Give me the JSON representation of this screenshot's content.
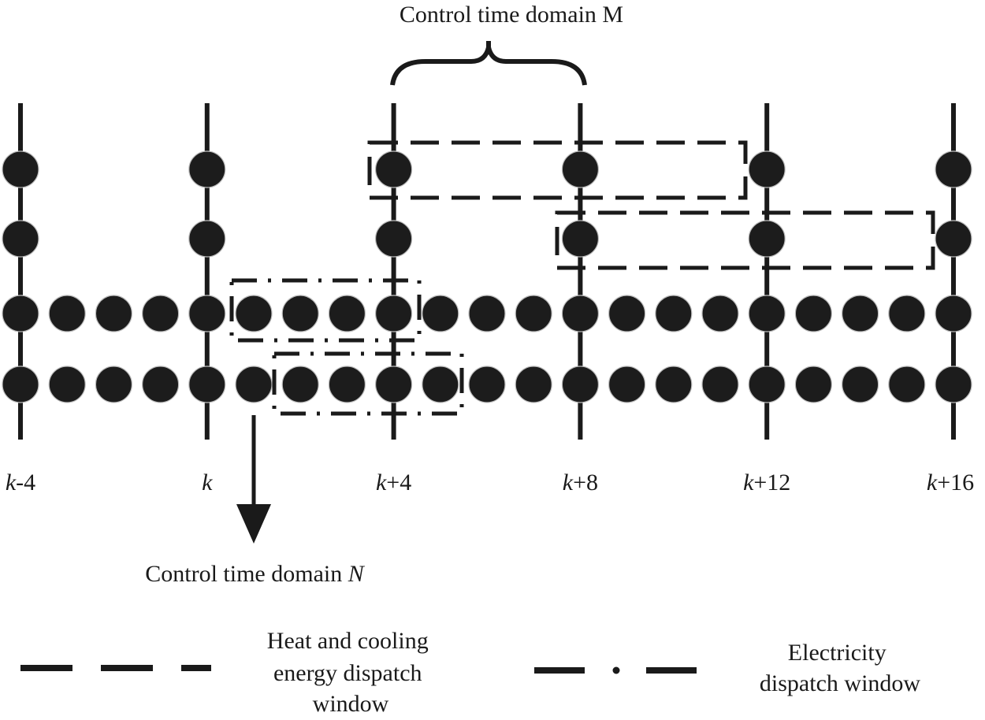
{
  "title": "Control time domain M",
  "bottom_label": {
    "prefix": "Control time domain ",
    "variable": "N"
  },
  "time_ticks": [
    {
      "italic": "k",
      "suffix": "-4"
    },
    {
      "italic": "k",
      "suffix": ""
    },
    {
      "italic": "k",
      "suffix": "+4"
    },
    {
      "italic": "k",
      "suffix": "+8"
    },
    {
      "italic": "k",
      "suffix": "+12"
    },
    {
      "italic": "k",
      "suffix": "+16"
    }
  ],
  "legend": {
    "heat_cooling": [
      "Heat and cooling",
      "energy dispatch",
      "window"
    ],
    "electricity": [
      "Electricity",
      "dispatch window"
    ]
  }
}
